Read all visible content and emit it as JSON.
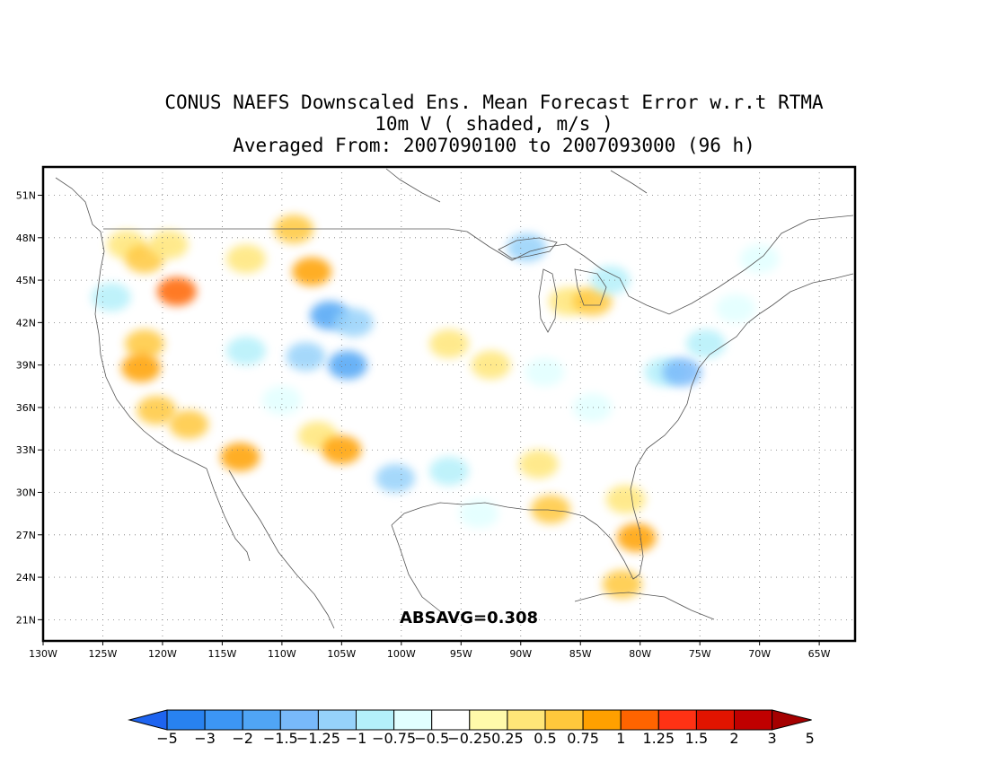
{
  "title": {
    "line1": "CONUS NAEFS Downscaled Ens. Mean Forecast Error w.r.t RTMA",
    "line2": "10m V ( shaded, m/s )",
    "line3": "Averaged From: 2007090100 to 2007093000 (96 h)"
  },
  "annotation": "ABSAVG=0.308",
  "map": {
    "lon_range": [
      -130,
      -62
    ],
    "lat_range": [
      19.5,
      53
    ],
    "lat_ticks": [
      {
        "value": 21,
        "label": "21N"
      },
      {
        "value": 24,
        "label": "24N"
      },
      {
        "value": 27,
        "label": "27N"
      },
      {
        "value": 30,
        "label": "30N"
      },
      {
        "value": 33,
        "label": "33N"
      },
      {
        "value": 36,
        "label": "36N"
      },
      {
        "value": 39,
        "label": "39N"
      },
      {
        "value": 42,
        "label": "42N"
      },
      {
        "value": 45,
        "label": "45N"
      },
      {
        "value": 48,
        "label": "48N"
      },
      {
        "value": 51,
        "label": "51N"
      }
    ],
    "lon_ticks": [
      {
        "value": -130,
        "label": "130W"
      },
      {
        "value": -125,
        "label": "125W"
      },
      {
        "value": -120,
        "label": "120W"
      },
      {
        "value": -115,
        "label": "115W"
      },
      {
        "value": -110,
        "label": "110W"
      },
      {
        "value": -105,
        "label": "105W"
      },
      {
        "value": -100,
        "label": "100W"
      },
      {
        "value": -95,
        "label": "95W"
      },
      {
        "value": -90,
        "label": "90W"
      },
      {
        "value": -85,
        "label": "85W"
      },
      {
        "value": -80,
        "label": "80W"
      },
      {
        "value": -75,
        "label": "75W"
      },
      {
        "value": -70,
        "label": "70W"
      },
      {
        "value": -65,
        "label": "65W"
      }
    ],
    "grid": true,
    "colorbar": {
      "labels": [
        "-5",
        "-3",
        "-2",
        "-1.5",
        "-1.25",
        "-1",
        "-0.75",
        "-0.5",
        "-0.25",
        "0.25",
        "0.5",
        "0.75",
        "1",
        "1.25",
        "1.5",
        "2",
        "3",
        "5"
      ],
      "colors": [
        "#1e64f0",
        "#2882f0",
        "#3c96f5",
        "#50a5f5",
        "#78b9fa",
        "#96d2fa",
        "#b4f0fa",
        "#e1ffff",
        "#ffffff",
        "#fffaaa",
        "#ffe678",
        "#ffc83c",
        "#ffa000",
        "#ff6400",
        "#ff3214",
        "#e11400",
        "#c00000",
        "#a50000"
      ]
    },
    "shaded_areas": [
      {
        "lon": -124.3,
        "lat": 43.8,
        "value": -0.6
      },
      {
        "lon": -123.0,
        "lat": 47.5,
        "value": 0.7
      },
      {
        "lon": -121.5,
        "lat": 46.5,
        "value": 0.8
      },
      {
        "lon": -119.5,
        "lat": 47.5,
        "value": 0.5
      },
      {
        "lon": -118.8,
        "lat": 44.2,
        "value": 1.3
      },
      {
        "lon": -121.5,
        "lat": 40.5,
        "value": 0.9
      },
      {
        "lon": -121.8,
        "lat": 38.8,
        "value": 1.0
      },
      {
        "lon": -120.5,
        "lat": 35.8,
        "value": 0.8
      },
      {
        "lon": -117.8,
        "lat": 34.8,
        "value": 0.9
      },
      {
        "lon": -113.5,
        "lat": 32.5,
        "value": 1.2
      },
      {
        "lon": -113.0,
        "lat": 46.5,
        "value": 0.6
      },
      {
        "lon": -109.0,
        "lat": 48.6,
        "value": 0.8
      },
      {
        "lon": -107.5,
        "lat": 45.6,
        "value": 1.2
      },
      {
        "lon": -106.0,
        "lat": 42.5,
        "value": -1.3
      },
      {
        "lon": -104.0,
        "lat": 42.0,
        "value": -1.0
      },
      {
        "lon": -104.5,
        "lat": 39.0,
        "value": -1.5
      },
      {
        "lon": -108.0,
        "lat": 39.6,
        "value": -1.0
      },
      {
        "lon": -113.0,
        "lat": 40.0,
        "value": -0.7
      },
      {
        "lon": -110.0,
        "lat": 36.5,
        "value": -0.5
      },
      {
        "lon": -107.0,
        "lat": 34.0,
        "value": 0.7
      },
      {
        "lon": -105.0,
        "lat": 33.0,
        "value": 1.0
      },
      {
        "lon": -100.5,
        "lat": 31.0,
        "value": -0.9
      },
      {
        "lon": -96.0,
        "lat": 31.5,
        "value": -0.7
      },
      {
        "lon": -93.5,
        "lat": 28.5,
        "value": -0.5
      },
      {
        "lon": -88.5,
        "lat": 32.0,
        "value": 0.6
      },
      {
        "lon": -87.5,
        "lat": 28.8,
        "value": 0.9
      },
      {
        "lon": -86.0,
        "lat": 43.5,
        "value": 0.7
      },
      {
        "lon": -84.0,
        "lat": 43.5,
        "value": 0.9
      },
      {
        "lon": -82.5,
        "lat": 45.0,
        "value": -0.6
      },
      {
        "lon": -89.5,
        "lat": 47.3,
        "value": -1.0
      },
      {
        "lon": -96.0,
        "lat": 40.5,
        "value": 0.5
      },
      {
        "lon": -92.5,
        "lat": 39.0,
        "value": 0.5
      },
      {
        "lon": -88.0,
        "lat": 38.5,
        "value": -0.5
      },
      {
        "lon": -84.0,
        "lat": 36.0,
        "value": -0.5
      },
      {
        "lon": -78.0,
        "lat": 38.5,
        "value": -0.7
      },
      {
        "lon": -76.5,
        "lat": 38.5,
        "value": -1.1
      },
      {
        "lon": -74.5,
        "lat": 40.5,
        "value": -0.6
      },
      {
        "lon": -72.0,
        "lat": 43.0,
        "value": -0.4
      },
      {
        "lon": -70.0,
        "lat": 46.5,
        "value": -0.4
      },
      {
        "lon": -81.2,
        "lat": 29.5,
        "value": 0.6
      },
      {
        "lon": -80.3,
        "lat": 26.8,
        "value": 1.2
      },
      {
        "lon": -81.5,
        "lat": 23.5,
        "value": 0.8
      }
    ]
  }
}
